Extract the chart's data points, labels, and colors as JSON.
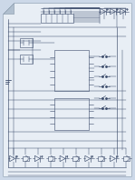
{
  "bg_color": "#ccd8e8",
  "paper_color": "#e8eef5",
  "line_color": "#3a4a6a",
  "line_width": 0.4,
  "fig_width": 1.49,
  "fig_height": 1.98,
  "dpi": 100
}
